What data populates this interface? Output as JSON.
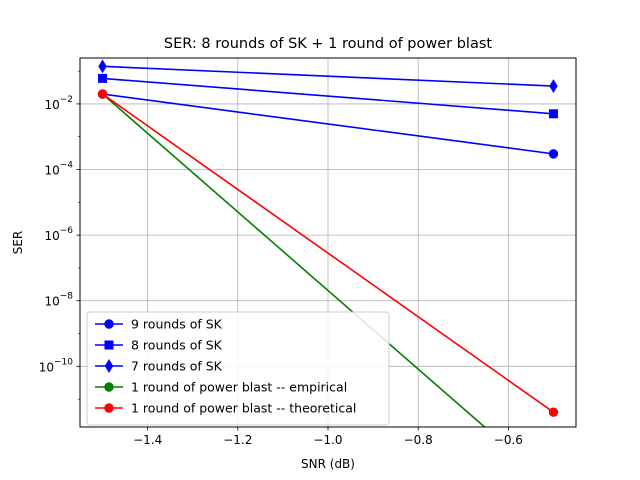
{
  "chart_data": {
    "type": "line",
    "title": "SER: 8 rounds of SK + 1 round of power blast",
    "xlabel": "SNR (dB)",
    "ylabel": "SER",
    "yscale": "log",
    "xlim": [
      -1.55,
      -0.45
    ],
    "ylim_exponent": [
      -11.85,
      -0.6
    ],
    "grid": true,
    "legend_position": "lower-left",
    "x_ticks": [
      {
        "value": -1.4,
        "label": "−1.4"
      },
      {
        "value": -1.2,
        "label": "−1.2"
      },
      {
        "value": -1.0,
        "label": "−1.0"
      },
      {
        "value": -0.8,
        "label": "−0.8"
      },
      {
        "value": -0.6,
        "label": "−0.6"
      }
    ],
    "y_ticks": [
      {
        "exp": -2,
        "base": "10",
        "sup": "−2"
      },
      {
        "exp": -4,
        "base": "10",
        "sup": "−4"
      },
      {
        "exp": -6,
        "base": "10",
        "sup": "−6"
      },
      {
        "exp": -8,
        "base": "10",
        "sup": "−8"
      },
      {
        "exp": -10,
        "base": "10",
        "sup": "−10"
      }
    ],
    "series": [
      {
        "name": "9 rounds of SK",
        "color": "#0000ff",
        "marker": "circle",
        "x": [
          -1.5,
          -0.5
        ],
        "y": [
          0.02,
          0.0003
        ]
      },
      {
        "name": "8 rounds of SK",
        "color": "#0000ff",
        "marker": "square",
        "x": [
          -1.5,
          -0.5
        ],
        "y": [
          0.06,
          0.005
        ]
      },
      {
        "name": "7 rounds of SK",
        "color": "#0000ff",
        "marker": "diamond",
        "x": [
          -1.5,
          -0.5
        ],
        "y": [
          0.14,
          0.035
        ]
      },
      {
        "name": "1 round of power blast -- empirical",
        "color": "#008000",
        "marker": "circle",
        "x": [
          -1.5,
          -0.5
        ],
        "y": [
          0.02,
          0
        ]
      },
      {
        "name": "1 round of power blast -- theoretical",
        "color": "#ff0000",
        "marker": "circle",
        "x": [
          -1.5,
          -0.5
        ],
        "y": [
          0.02,
          4e-12
        ]
      }
    ]
  }
}
